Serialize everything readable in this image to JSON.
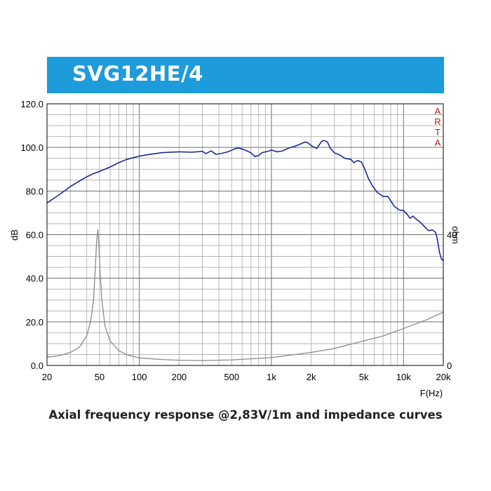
{
  "banner": {
    "title": "SVG12HE/4",
    "color": "#1e9bdb"
  },
  "caption": "Axial frequency response @2,83V/1m and impedance curves",
  "chart_data": {
    "type": "line",
    "title": "SVG12HE/4",
    "xlabel": "F(Hz)",
    "ylabel": "dB",
    "y2label": "ohm",
    "x_scale": "log",
    "xlim": [
      20,
      20000
    ],
    "ylim": [
      0,
      120
    ],
    "y2lim": [
      0,
      80
    ],
    "grid": true,
    "watermark": "ARTA",
    "x_ticks": [
      {
        "value": 20,
        "label": "20"
      },
      {
        "value": 50,
        "label": "50"
      },
      {
        "value": 100,
        "label": "100"
      },
      {
        "value": 200,
        "label": "200"
      },
      {
        "value": 500,
        "label": "500"
      },
      {
        "value": 1000,
        "label": "1k"
      },
      {
        "value": 2000,
        "label": "2k"
      },
      {
        "value": 5000,
        "label": "5k"
      },
      {
        "value": 10000,
        "label": "10k"
      },
      {
        "value": 20000,
        "label": "20k"
      }
    ],
    "y_ticks": [
      {
        "value": 0,
        "label": "0.0"
      },
      {
        "value": 20,
        "label": "20.0"
      },
      {
        "value": 40,
        "label": "40.0"
      },
      {
        "value": 60,
        "label": "60.0"
      },
      {
        "value": 80,
        "label": "80.0"
      },
      {
        "value": 100,
        "label": "100.0"
      },
      {
        "value": 120,
        "label": "120.0"
      }
    ],
    "y2_ticks": [
      {
        "value": 0,
        "label": "0"
      },
      {
        "value": 40,
        "label": "40"
      }
    ],
    "series": [
      {
        "color": "#1a2a9a",
        "axis": "left",
        "points": [
          [
            20,
            74.5
          ],
          [
            25,
            78.5
          ],
          [
            30,
            82
          ],
          [
            35,
            84.5
          ],
          [
            40,
            86.5
          ],
          [
            45,
            88
          ],
          [
            50,
            89
          ],
          [
            60,
            91
          ],
          [
            70,
            93
          ],
          [
            80,
            94.5
          ],
          [
            90,
            95.3
          ],
          [
            100,
            96
          ],
          [
            120,
            96.8
          ],
          [
            150,
            97.6
          ],
          [
            200,
            98
          ],
          [
            250,
            97.8
          ],
          [
            300,
            98.2
          ],
          [
            320,
            97.2
          ],
          [
            350,
            98.4
          ],
          [
            380,
            96.8
          ],
          [
            420,
            97.3
          ],
          [
            470,
            98
          ],
          [
            520,
            99.2
          ],
          [
            560,
            99.8
          ],
          [
            620,
            99
          ],
          [
            700,
            97.5
          ],
          [
            750,
            95.8
          ],
          [
            800,
            96.3
          ],
          [
            850,
            97.6
          ],
          [
            950,
            98.3
          ],
          [
            1000,
            98.8
          ],
          [
            1100,
            98
          ],
          [
            1200,
            98.3
          ],
          [
            1350,
            99.7
          ],
          [
            1500,
            100.5
          ],
          [
            1650,
            101.5
          ],
          [
            1800,
            102.5
          ],
          [
            1900,
            102
          ],
          [
            2000,
            100.8
          ],
          [
            2200,
            99.5
          ],
          [
            2400,
            102.8
          ],
          [
            2500,
            103.2
          ],
          [
            2650,
            102.5
          ],
          [
            2800,
            99.5
          ],
          [
            3000,
            97.5
          ],
          [
            3300,
            96.5
          ],
          [
            3600,
            95
          ],
          [
            4000,
            94.5
          ],
          [
            4200,
            93
          ],
          [
            4500,
            94
          ],
          [
            4800,
            93.3
          ],
          [
            5100,
            90
          ],
          [
            5400,
            86
          ],
          [
            5800,
            82.5
          ],
          [
            6300,
            79.5
          ],
          [
            7000,
            77.5
          ],
          [
            7600,
            77.5
          ],
          [
            8000,
            75.5
          ],
          [
            8500,
            73
          ],
          [
            9300,
            71.3
          ],
          [
            10000,
            71
          ],
          [
            10600,
            69.5
          ],
          [
            11200,
            67.5
          ],
          [
            11800,
            68.5
          ],
          [
            12500,
            67
          ],
          [
            13500,
            65.5
          ],
          [
            14500,
            63.5
          ],
          [
            15500,
            61.8
          ],
          [
            16500,
            62.2
          ],
          [
            17500,
            61
          ],
          [
            18000,
            58
          ],
          [
            18700,
            52
          ],
          [
            19300,
            49
          ],
          [
            19700,
            48.3
          ],
          [
            20000,
            48.8
          ]
        ]
      },
      {
        "color": "#8a8a8a",
        "axis": "right",
        "points": [
          [
            20,
            2.5
          ],
          [
            25,
            3
          ],
          [
            30,
            4
          ],
          [
            35,
            5.5
          ],
          [
            40,
            9
          ],
          [
            43,
            14
          ],
          [
            45,
            20
          ],
          [
            46.5,
            30
          ],
          [
            47.5,
            38
          ],
          [
            48.5,
            41.5
          ],
          [
            49.5,
            36
          ],
          [
            50.5,
            28
          ],
          [
            52,
            20
          ],
          [
            55,
            12
          ],
          [
            60,
            7.5
          ],
          [
            70,
            4.5
          ],
          [
            80,
            3.3
          ],
          [
            100,
            2.3
          ],
          [
            150,
            1.8
          ],
          [
            200,
            1.6
          ],
          [
            300,
            1.5
          ],
          [
            500,
            1.7
          ],
          [
            1000,
            2.4
          ],
          [
            2000,
            4
          ],
          [
            3000,
            5.2
          ],
          [
            5000,
            7.5
          ],
          [
            7000,
            9
          ],
          [
            10000,
            11.3
          ],
          [
            15000,
            14
          ],
          [
            20000,
            16.3
          ]
        ]
      }
    ]
  }
}
